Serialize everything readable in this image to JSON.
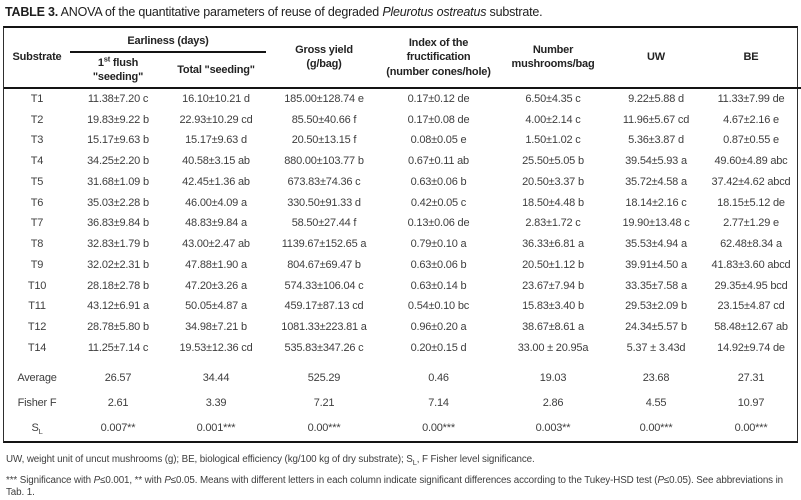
{
  "title": {
    "label": "TABLE 3.",
    "pre": " ANOVA of the quantitative parameters of reuse of degraded ",
    "species": "Pleurotus ostreatus",
    "post": " substrate."
  },
  "header": {
    "substrate": "Substrate",
    "earliness_group": "Earliness (days)",
    "flush_num": "1",
    "flush_sup": "st",
    "flush_rest": " flush\n\"seeding\"",
    "total": "Total \"seeding\"",
    "gross": "Gross yield\n(g/bag)",
    "index": "Index of the\nfructification\n(number cones/hole)",
    "number": "Number\nmushrooms/bag",
    "uw": "UW",
    "be": "BE"
  },
  "rows": [
    {
      "substrate": "T1",
      "flush": "11.38±7.20 c",
      "total": "16.10±10.21 d",
      "gross": "185.00±128.74 e",
      "index": "0.17±0.12 de",
      "number": "6.50±4.35 c",
      "uw": "9.22±5.88 d",
      "be": "11.33±7.99 de"
    },
    {
      "substrate": "T2",
      "flush": "19.83±9.22 b",
      "total": "22.93±10.29 cd",
      "gross": "85.50±40.66 f",
      "index": "0.17±0.08 de",
      "number": "4.00±2.14 c",
      "uw": "11.96±5.67 cd",
      "be": "4.67±2.16 e"
    },
    {
      "substrate": "T3",
      "flush": "15.17±9.63 b",
      "total": "15.17±9.63 d",
      "gross": "20.50±13.15 f",
      "index": "0.08±0.05 e",
      "number": "1.50±1.02 c",
      "uw": "5.36±3.87 d",
      "be": "0.87±0.55 e"
    },
    {
      "substrate": "T4",
      "flush": "34.25±2.20 b",
      "total": "40.58±3.15 ab",
      "gross": "880.00±103.77 b",
      "index": "0.67±0.11 ab",
      "number": "25.50±5.05 b",
      "uw": "39.54±5.93 a",
      "be": "49.60±4.89 abc"
    },
    {
      "substrate": "T5",
      "flush": "31.68±1.09 b",
      "total": "42.45±1.36 ab",
      "gross": "673.83±74.36 c",
      "index": "0.63±0.06 b",
      "number": "20.50±3.37 b",
      "uw": "35.72±4.58 a",
      "be": "37.42±4.62 abcd"
    },
    {
      "substrate": "T6",
      "flush": "35.03±2.28 b",
      "total": "46.00±4.09 a",
      "gross": "330.50±91.33 d",
      "index": "0.42±0.05 c",
      "number": "18.50±4.48 b",
      "uw": "18.14±2.16 c",
      "be": "18.15±5.12 de"
    },
    {
      "substrate": "T7",
      "flush": "36.83±9.84 b",
      "total": "48.83±9.84 a",
      "gross": "58.50±27.44 f",
      "index": "0.13±0.06 de",
      "number": "2.83±1.72 c",
      "uw": "19.90±13.48 c",
      "be": "2.77±1.29 e"
    },
    {
      "substrate": "T8",
      "flush": "32.83±1.79 b",
      "total": "43.00±2.47 ab",
      "gross": "1139.67±152.65 a",
      "index": "0.79±0.10 a",
      "number": "36.33±6.81 a",
      "uw": "35.53±4.94 a",
      "be": "62.48±8.34 a"
    },
    {
      "substrate": "T9",
      "flush": "32.02±2.31 b",
      "total": "47.88±1.90 a",
      "gross": "804.67±69.47 b",
      "index": "0.63±0.06 b",
      "number": "20.50±1.12 b",
      "uw": "39.91±4.50 a",
      "be": "41.83±3.60 abcd"
    },
    {
      "substrate": "T10",
      "flush": "28.18±2.78 b",
      "total": "47.20±3.26 a",
      "gross": "574.33±106.04 c",
      "index": "0.63±0.14 b",
      "number": "23.67±7.94 b",
      "uw": "33.35±7.58 a",
      "be": "29.35±4.95 bcd"
    },
    {
      "substrate": "T11",
      "flush": "43.12±6.91 a",
      "total": "50.05±4.87 a",
      "gross": "459.17±87.13 cd",
      "index": "0.54±0.10 bc",
      "number": "15.83±3.40 b",
      "uw": "29.53±2.09 b",
      "be": "23.15±4.87 cd"
    },
    {
      "substrate": "T12",
      "flush": "28.78±5.80 b",
      "total": "34.98±7.21 b",
      "gross": "1081.33±223.81 a",
      "index": "0.96±0.20 a",
      "number": "38.67±8.61 a",
      "uw": "24.34±5.57 b",
      "be": "58.48±12.67 ab"
    },
    {
      "substrate": "T14",
      "flush": "11.25±7.14 c",
      "total": "19.53±12.36 cd",
      "gross": "535.83±347.26 c",
      "index": "0.20±0.15 d",
      "number": "33.00 ± 20.95a",
      "uw": "5.37 ± 3.43d",
      "be": "14.92±9.74 de"
    }
  ],
  "summary": [
    {
      "label": "Average",
      "flush": "26.57",
      "total": "34.44",
      "gross": "525.29",
      "index": "0.46",
      "number": "19.03",
      "uw": "23.68",
      "be": "27.31"
    },
    {
      "label": "Fisher F",
      "flush": "2.61",
      "total": "3.39",
      "gross": "7.21",
      "index": "7.14",
      "number": "2.86",
      "uw": "4.55",
      "be": "10.97"
    },
    {
      "label": "S",
      "label_sub": "L",
      "flush": "0.007**",
      "total": "0.001***",
      "gross": "0.00***",
      "index": "0.00***",
      "number": "0.003**",
      "uw": "0.00***",
      "be": "0.00***"
    }
  ],
  "footnotes": {
    "fn1_pre": "UW, weight unit of uncut mushrooms (g); BE, biological efficiency (kg/100 kg of dry substrate); S",
    "fn1_sub": "L",
    "fn1_post": ", F Fisher level significance.",
    "fn2_pre": "*** Significance with ",
    "fn2_p1": "P",
    "fn2_mid1": "≤0.001, ** with ",
    "fn2_p2": "P",
    "fn2_mid2": "≤0.05. Means with different letters in each column indicate significant differences according to the Tukey-HSD test (",
    "fn2_p3": "P",
    "fn2_mid3": "≤0.05). See abbreviations in Tab. 1."
  }
}
